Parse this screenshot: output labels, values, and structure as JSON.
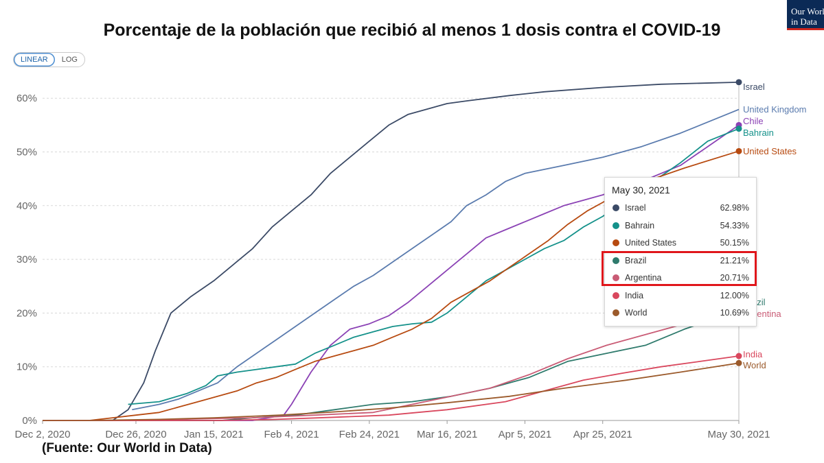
{
  "title": "Porcentaje de la población que recibió al menos 1 dosis contra el COVID-19",
  "source": "(Fuente: Our World in Data)",
  "logo": {
    "line1": "Our World",
    "line2": "in Data"
  },
  "scale_toggle": {
    "linear": "LINEAR",
    "log": "LOG",
    "selected": "LINEAR"
  },
  "tooltip": {
    "date": "May 30, 2021",
    "rows": [
      {
        "name": "Israel",
        "value": "62.98%",
        "color": "#3b4a66"
      },
      {
        "name": "Bahrain",
        "value": "54.33%",
        "color": "#14918a"
      },
      {
        "name": "United States",
        "value": "50.15%",
        "color": "#b74a10"
      },
      {
        "name": "Brazil",
        "value": "21.21%",
        "color": "#2e7a6c"
      },
      {
        "name": "Argentina",
        "value": "20.71%",
        "color": "#c95b75"
      },
      {
        "name": "India",
        "value": "12.00%",
        "color": "#d9475d"
      },
      {
        "name": "World",
        "value": "10.69%",
        "color": "#9b5a2b"
      }
    ],
    "highlighted": [
      "Brazil",
      "Argentina"
    ],
    "highlight_color": "#e0161b"
  },
  "chart_data": {
    "type": "line",
    "title": "Porcentaje de la población que recibió al menos 1 dosis contra el COVID-19",
    "x_ticks": [
      "Dec 2, 2020",
      "Dec 26, 2020",
      "Jan 15, 2021",
      "Feb 4, 2021",
      "Feb 24, 2021",
      "Mar 16, 2021",
      "Apr 5, 2021",
      "Apr 25, 2021",
      "May 30, 2021"
    ],
    "y_ticks": [
      "0%",
      "10%",
      "20%",
      "30%",
      "40%",
      "50%",
      "60%"
    ],
    "xlim": [
      "2020-12-02",
      "2021-05-30"
    ],
    "ylim": [
      0,
      63
    ],
    "y_unit": "%",
    "grid": "horizontal dotted",
    "legend": "end-labels",
    "series": [
      {
        "name": "Israel",
        "color": "#3b4a66",
        "points": [
          [
            "2020-12-02",
            0
          ],
          [
            "2020-12-20",
            0
          ],
          [
            "2020-12-24",
            2
          ],
          [
            "2020-12-28",
            7
          ],
          [
            "2020-12-31",
            13
          ],
          [
            "2021-01-04",
            20
          ],
          [
            "2021-01-09",
            23
          ],
          [
            "2021-01-15",
            26
          ],
          [
            "2021-01-20",
            29
          ],
          [
            "2021-01-25",
            32
          ],
          [
            "2021-01-30",
            36
          ],
          [
            "2021-02-04",
            39
          ],
          [
            "2021-02-09",
            42
          ],
          [
            "2021-02-14",
            46
          ],
          [
            "2021-02-19",
            49
          ],
          [
            "2021-02-24",
            52
          ],
          [
            "2021-03-01",
            55
          ],
          [
            "2021-03-06",
            57
          ],
          [
            "2021-03-11",
            58
          ],
          [
            "2021-03-16",
            59
          ],
          [
            "2021-03-21",
            59.5
          ],
          [
            "2021-04-01",
            60.5
          ],
          [
            "2021-04-10",
            61.2
          ],
          [
            "2021-04-25",
            62
          ],
          [
            "2021-05-10",
            62.6
          ],
          [
            "2021-05-30",
            62.98
          ]
        ]
      },
      {
        "name": "United Kingdom",
        "color": "#5a7bae",
        "points": [
          [
            "2020-12-25",
            2
          ],
          [
            "2021-01-01",
            3
          ],
          [
            "2021-01-06",
            4
          ],
          [
            "2021-01-11",
            5.5
          ],
          [
            "2021-01-16",
            7
          ],
          [
            "2021-01-21",
            10
          ],
          [
            "2021-01-26",
            12.5
          ],
          [
            "2021-01-31",
            15
          ],
          [
            "2021-02-05",
            17.5
          ],
          [
            "2021-02-10",
            20
          ],
          [
            "2021-02-15",
            22.5
          ],
          [
            "2021-02-20",
            25
          ],
          [
            "2021-02-25",
            27
          ],
          [
            "2021-03-02",
            29.5
          ],
          [
            "2021-03-07",
            32
          ],
          [
            "2021-03-12",
            34.5
          ],
          [
            "2021-03-17",
            37
          ],
          [
            "2021-03-21",
            40
          ],
          [
            "2021-03-26",
            42
          ],
          [
            "2021-03-31",
            44.5
          ],
          [
            "2021-04-05",
            46
          ],
          [
            "2021-04-15",
            47.5
          ],
          [
            "2021-04-25",
            49
          ],
          [
            "2021-05-05",
            51
          ],
          [
            "2021-05-15",
            53.5
          ],
          [
            "2021-05-30",
            57.9
          ]
        ]
      },
      {
        "name": "Chile",
        "color": "#8b42b5",
        "points": [
          [
            "2020-12-02",
            0
          ],
          [
            "2021-01-25",
            0
          ],
          [
            "2021-02-02",
            1
          ],
          [
            "2021-02-04",
            3
          ],
          [
            "2021-02-09",
            9
          ],
          [
            "2021-02-14",
            14
          ],
          [
            "2021-02-19",
            17
          ],
          [
            "2021-02-24",
            18
          ],
          [
            "2021-03-01",
            19.5
          ],
          [
            "2021-03-06",
            22
          ],
          [
            "2021-03-11",
            25
          ],
          [
            "2021-03-16",
            28
          ],
          [
            "2021-03-21",
            31
          ],
          [
            "2021-03-26",
            34
          ],
          [
            "2021-03-31",
            35.5
          ],
          [
            "2021-04-05",
            37
          ],
          [
            "2021-04-10",
            38.5
          ],
          [
            "2021-04-15",
            40
          ],
          [
            "2021-04-20",
            41
          ],
          [
            "2021-04-25",
            42
          ],
          [
            "2021-05-05",
            44.5
          ],
          [
            "2021-05-15",
            47.5
          ],
          [
            "2021-05-22",
            51
          ],
          [
            "2021-05-30",
            55
          ]
        ]
      },
      {
        "name": "Bahrain",
        "color": "#14918a",
        "points": [
          [
            "2020-12-24",
            3
          ],
          [
            "2021-01-01",
            3.5
          ],
          [
            "2021-01-08",
            5
          ],
          [
            "2021-01-13",
            6.5
          ],
          [
            "2021-01-16",
            8.3
          ],
          [
            "2021-01-21",
            9
          ],
          [
            "2021-01-26",
            9.5
          ],
          [
            "2021-01-31",
            10
          ],
          [
            "2021-02-05",
            10.5
          ],
          [
            "2021-02-10",
            12.5
          ],
          [
            "2021-02-15",
            14
          ],
          [
            "2021-02-20",
            15.5
          ],
          [
            "2021-02-25",
            16.5
          ],
          [
            "2021-03-02",
            17.5
          ],
          [
            "2021-03-07",
            18
          ],
          [
            "2021-03-12",
            18.3
          ],
          [
            "2021-03-16",
            20
          ],
          [
            "2021-03-21",
            23
          ],
          [
            "2021-03-26",
            26
          ],
          [
            "2021-03-31",
            28
          ],
          [
            "2021-04-05",
            30
          ],
          [
            "2021-04-10",
            32
          ],
          [
            "2021-04-15",
            33.5
          ],
          [
            "2021-04-20",
            36
          ],
          [
            "2021-04-25",
            38
          ],
          [
            "2021-05-05",
            43
          ],
          [
            "2021-05-15",
            48
          ],
          [
            "2021-05-22",
            52
          ],
          [
            "2021-05-30",
            54.33
          ]
        ]
      },
      {
        "name": "United States",
        "color": "#b74a10",
        "points": [
          [
            "2020-12-14",
            0
          ],
          [
            "2020-12-20",
            0.5
          ],
          [
            "2020-12-26",
            1
          ],
          [
            "2021-01-01",
            1.5
          ],
          [
            "2021-01-06",
            2.5
          ],
          [
            "2021-01-11",
            3.5
          ],
          [
            "2021-01-16",
            4.5
          ],
          [
            "2021-01-21",
            5.5
          ],
          [
            "2021-01-26",
            7
          ],
          [
            "2021-01-31",
            8
          ],
          [
            "2021-02-05",
            9.5
          ],
          [
            "2021-02-10",
            11
          ],
          [
            "2021-02-15",
            12
          ],
          [
            "2021-02-20",
            13
          ],
          [
            "2021-02-25",
            14
          ],
          [
            "2021-03-02",
            15.5
          ],
          [
            "2021-03-07",
            17
          ],
          [
            "2021-03-12",
            19
          ],
          [
            "2021-03-17",
            22
          ],
          [
            "2021-03-22",
            24
          ],
          [
            "2021-03-27",
            26
          ],
          [
            "2021-04-01",
            28.5
          ],
          [
            "2021-04-06",
            31
          ],
          [
            "2021-04-11",
            33.5
          ],
          [
            "2021-04-16",
            36.5
          ],
          [
            "2021-04-21",
            39
          ],
          [
            "2021-04-26",
            41
          ],
          [
            "2021-05-06",
            44.5
          ],
          [
            "2021-05-16",
            47
          ],
          [
            "2021-05-30",
            50.15
          ]
        ]
      },
      {
        "name": "Brazil",
        "color": "#2e7a6c",
        "points": [
          [
            "2020-12-02",
            0
          ],
          [
            "2021-01-17",
            0
          ],
          [
            "2021-01-25",
            0.5
          ],
          [
            "2021-02-05",
            1
          ],
          [
            "2021-02-15",
            2
          ],
          [
            "2021-02-25",
            3
          ],
          [
            "2021-03-07",
            3.5
          ],
          [
            "2021-03-17",
            4.5
          ],
          [
            "2021-03-27",
            6
          ],
          [
            "2021-04-06",
            8
          ],
          [
            "2021-04-16",
            11
          ],
          [
            "2021-04-26",
            12.5
          ],
          [
            "2021-05-06",
            14
          ],
          [
            "2021-05-16",
            17
          ],
          [
            "2021-05-24",
            19
          ],
          [
            "2021-05-30",
            21.21
          ]
        ]
      },
      {
        "name": "Argentina",
        "color": "#c95b75",
        "points": [
          [
            "2020-12-02",
            0
          ],
          [
            "2020-12-29",
            0
          ],
          [
            "2021-01-10",
            0.3
          ],
          [
            "2021-01-25",
            0.5
          ],
          [
            "2021-02-10",
            1
          ],
          [
            "2021-02-25",
            1.5
          ],
          [
            "2021-03-07",
            3
          ],
          [
            "2021-03-17",
            4.5
          ],
          [
            "2021-03-27",
            6
          ],
          [
            "2021-04-06",
            8.5
          ],
          [
            "2021-04-16",
            11.5
          ],
          [
            "2021-04-26",
            14
          ],
          [
            "2021-05-06",
            16
          ],
          [
            "2021-05-16",
            18
          ],
          [
            "2021-05-24",
            19.5
          ],
          [
            "2021-05-30",
            20.71
          ]
        ]
      },
      {
        "name": "India",
        "color": "#d9475d",
        "points": [
          [
            "2020-12-02",
            0
          ],
          [
            "2021-01-16",
            0
          ],
          [
            "2021-01-31",
            0.2
          ],
          [
            "2021-02-15",
            0.6
          ],
          [
            "2021-03-01",
            1
          ],
          [
            "2021-03-16",
            2
          ],
          [
            "2021-03-31",
            3.5
          ],
          [
            "2021-04-10",
            5.5
          ],
          [
            "2021-04-20",
            7.5
          ],
          [
            "2021-04-30",
            8.8
          ],
          [
            "2021-05-10",
            10
          ],
          [
            "2021-05-20",
            11
          ],
          [
            "2021-05-30",
            12
          ]
        ]
      },
      {
        "name": "World",
        "color": "#9b5a2b",
        "points": [
          [
            "2020-12-02",
            0
          ],
          [
            "2020-12-14",
            0
          ],
          [
            "2021-01-01",
            0.2
          ],
          [
            "2021-01-15",
            0.5
          ],
          [
            "2021-02-01",
            1
          ],
          [
            "2021-02-15",
            1.6
          ],
          [
            "2021-03-01",
            2.3
          ],
          [
            "2021-03-16",
            3.3
          ],
          [
            "2021-04-01",
            4.5
          ],
          [
            "2021-04-15",
            6
          ],
          [
            "2021-05-01",
            7.5
          ],
          [
            "2021-05-15",
            9
          ],
          [
            "2021-05-30",
            10.69
          ]
        ]
      }
    ],
    "end_labels": [
      {
        "name": "Israel",
        "text": "Israel",
        "color": "#3b4a66",
        "value": 62.98
      },
      {
        "name": "United Kingdom",
        "text": "United Kingdom",
        "color": "#5a7bae",
        "value": 57.9
      },
      {
        "name": "Chile",
        "text": "Chile",
        "color": "#8b42b5",
        "value": 55
      },
      {
        "name": "Bahrain",
        "text": "Bahrain",
        "color": "#14918a",
        "value": 54.33
      },
      {
        "name": "United States",
        "text": "United States",
        "color": "#b74a10",
        "value": 50.15
      },
      {
        "name": "Brazil",
        "text": "Brazil",
        "color": "#2e7a6c",
        "value": 21.21
      },
      {
        "name": "Argentina",
        "text": "Argentina",
        "color": "#c95b75",
        "value": 20.71
      },
      {
        "name": "India",
        "text": "India",
        "color": "#d9475d",
        "value": 12
      },
      {
        "name": "World",
        "text": "World",
        "color": "#9b5a2b",
        "value": 10.69
      }
    ]
  }
}
